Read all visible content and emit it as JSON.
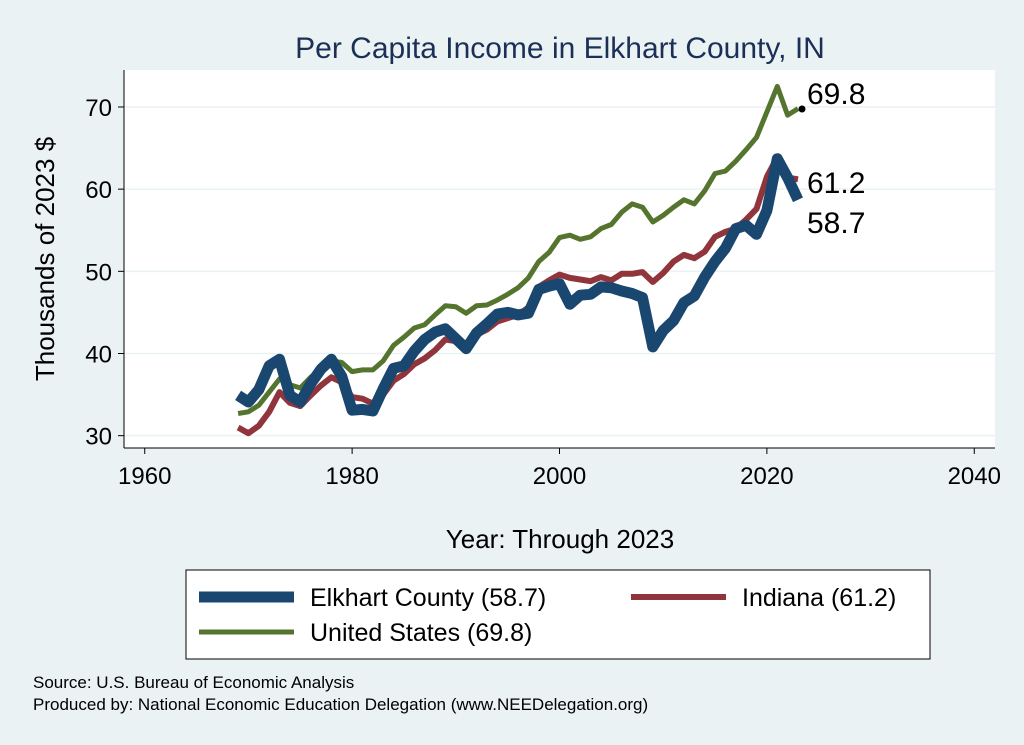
{
  "chart_data": {
    "type": "line",
    "title": "Per Capita Income in Elkhart County, IN",
    "xlabel": "Year: Through 2023",
    "ylabel": "Thousands of 2023 $",
    "xlim": [
      1958,
      2042
    ],
    "ylim": [
      28.5,
      74.5
    ],
    "x_ticks": [
      1960,
      1980,
      2000,
      2020,
      2040
    ],
    "y_ticks": [
      30,
      40,
      50,
      60,
      70
    ],
    "grid": true,
    "legend_position": "bottom",
    "x": [
      1969,
      1970,
      1971,
      1972,
      1973,
      1974,
      1975,
      1976,
      1977,
      1978,
      1979,
      1980,
      1981,
      1982,
      1983,
      1984,
      1985,
      1986,
      1987,
      1988,
      1989,
      1990,
      1991,
      1992,
      1993,
      1994,
      1995,
      1996,
      1997,
      1998,
      1999,
      2000,
      2001,
      2002,
      2003,
      2004,
      2005,
      2006,
      2007,
      2008,
      2009,
      2010,
      2011,
      2012,
      2013,
      2014,
      2015,
      2016,
      2017,
      2018,
      2019,
      2020,
      2021,
      2022,
      2023
    ],
    "series": [
      {
        "name": "Elkhart County (58.7)",
        "color": "#1a476f",
        "values": [
          34.9,
          34.1,
          35.6,
          38.5,
          39.3,
          34.9,
          34.1,
          36.3,
          38.1,
          39.3,
          37.2,
          33.1,
          33.2,
          33.0,
          35.7,
          38.2,
          38.5,
          40.3,
          41.7,
          42.6,
          43.0,
          41.8,
          40.6,
          42.5,
          43.6,
          44.8,
          45.0,
          44.7,
          44.9,
          47.8,
          48.2,
          48.5,
          46.0,
          47.1,
          47.2,
          48.1,
          48.0,
          47.6,
          47.3,
          46.8,
          40.8,
          42.8,
          44.0,
          46.2,
          47.0,
          49.3,
          51.2,
          52.8,
          55.2,
          55.6,
          54.5,
          57.4,
          63.7,
          61.4,
          58.7
        ]
      },
      {
        "name": "Indiana (61.2)",
        "color": "#90353b",
        "values": [
          31.0,
          30.3,
          31.2,
          32.9,
          35.3,
          34.0,
          33.6,
          34.9,
          36.1,
          37.1,
          36.5,
          34.7,
          34.5,
          33.9,
          35.0,
          36.7,
          37.5,
          38.7,
          39.4,
          40.4,
          41.7,
          41.5,
          41.2,
          42.3,
          42.9,
          43.9,
          44.3,
          44.7,
          45.6,
          48.1,
          48.9,
          49.6,
          49.2,
          49.0,
          48.8,
          49.3,
          48.9,
          49.7,
          49.7,
          49.9,
          48.7,
          49.8,
          51.2,
          52.0,
          51.6,
          52.4,
          54.2,
          54.8,
          55.2,
          56.3,
          57.6,
          61.5,
          63.9,
          61.4,
          61.2
        ]
      },
      {
        "name": "United States (69.8)",
        "color": "#55752f",
        "values": [
          32.7,
          32.9,
          33.7,
          35.3,
          36.9,
          36.2,
          35.8,
          37.1,
          38.1,
          39.1,
          38.9,
          37.8,
          38.0,
          38.0,
          39.1,
          41.0,
          42.0,
          43.1,
          43.5,
          44.7,
          45.8,
          45.7,
          44.9,
          45.8,
          45.9,
          46.5,
          47.2,
          48.0,
          49.2,
          51.2,
          52.3,
          54.1,
          54.4,
          53.9,
          54.2,
          55.2,
          55.7,
          57.2,
          58.2,
          57.8,
          56.0,
          56.8,
          57.8,
          58.7,
          58.2,
          59.8,
          61.9,
          62.2,
          63.4,
          64.8,
          66.3,
          69.4,
          72.5,
          69.0,
          69.8
        ]
      }
    ],
    "end_labels": [
      "69.8",
      "61.2",
      "58.7"
    ],
    "legend_entries": [
      "Elkhart County (58.7)",
      "Indiana (61.2)",
      "United States (69.8)"
    ]
  },
  "footer": {
    "source": "Source: U.S. Bureau of Economic Analysis",
    "produced_by": "Produced by: National Economic Education Delegation (www.NEEDelegation.org)"
  },
  "colors": {
    "background": "#eaf2f3",
    "plot_background": "#ffffff",
    "title": "#1c2f57",
    "grid": "#eaf2f3",
    "end_marker": "#000000"
  }
}
